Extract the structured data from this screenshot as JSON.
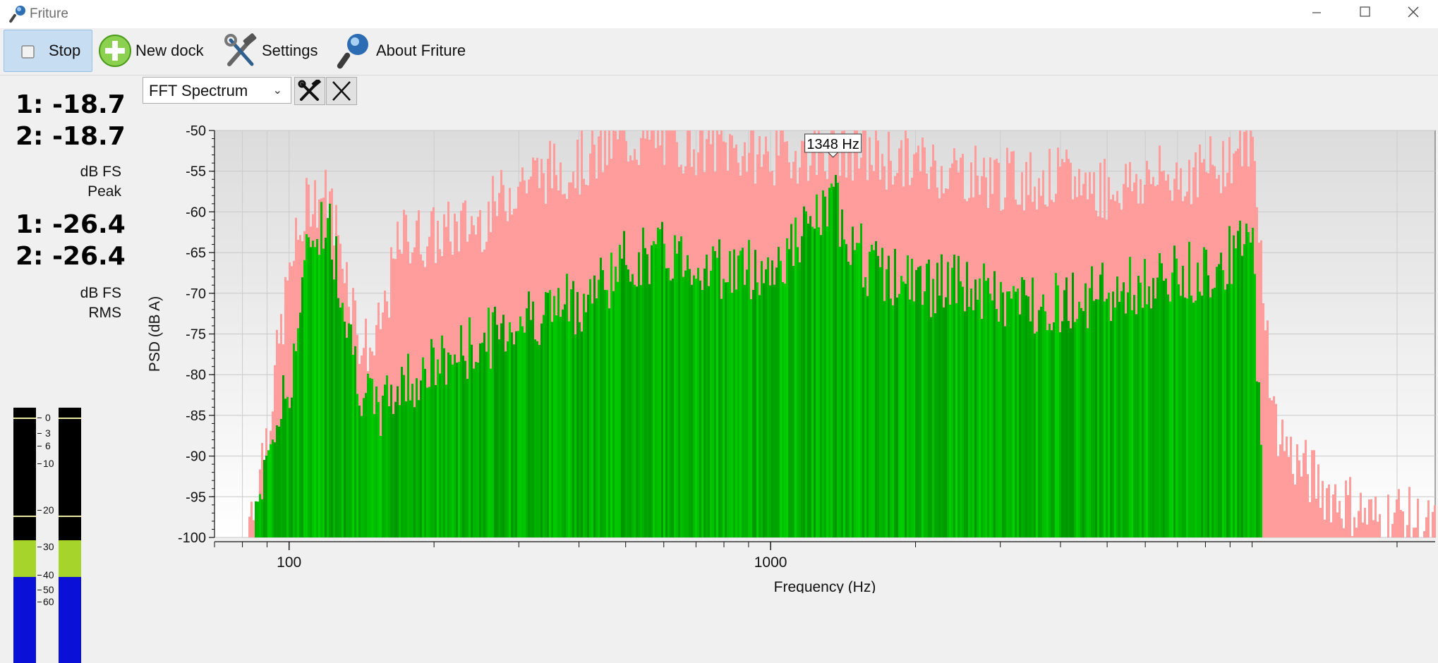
{
  "window": {
    "title": "Friture"
  },
  "toolbar": {
    "stop_label": "Stop",
    "new_dock_label": "New dock",
    "settings_label": "Settings",
    "about_label": "About Friture"
  },
  "levels": {
    "peak": {
      "ch1": "1: -18.7",
      "ch2": "2: -18.7",
      "unit": "dB FS",
      "kind": "Peak"
    },
    "rms": {
      "ch1": "1: -26.4",
      "ch2": "2: -26.4",
      "unit": "dB FS",
      "kind": "RMS"
    },
    "meter_scale": [
      "0",
      "3",
      "6",
      "10",
      "20",
      "30",
      "40",
      "50",
      "60"
    ],
    "meter_levels_db": {
      "peak": -18.7,
      "rms": -26.4
    }
  },
  "dock": {
    "widget_select": "FFT Spectrum",
    "settings_icon": "hammer-wrench-icon",
    "close_icon": "close-icon"
  },
  "chart_data": {
    "type": "bar",
    "xlabel": "Frequency (Hz)",
    "ylabel": "PSD (dB A)",
    "x_scale": "log",
    "xlim": [
      70,
      24000
    ],
    "ylim": [
      -100,
      -50
    ],
    "y_ticks": [
      -50,
      -55,
      -60,
      -65,
      -70,
      -75,
      -80,
      -85,
      -90,
      -95,
      -100
    ],
    "x_tick_labels": [
      {
        "value": 100,
        "label": "100"
      },
      {
        "value": 1000,
        "label": "1000"
      }
    ],
    "peak_annotation": "1348 Hz",
    "colors": {
      "live": "#00b400",
      "peak_hold": "#ff9c9c"
    },
    "series": [
      {
        "role": "live",
        "x": [
          80,
          90,
          100,
          110,
          120,
          130,
          140,
          150,
          170,
          200,
          250,
          300,
          400,
          500,
          600,
          800,
          1000,
          1348,
          1600,
          2000,
          2500,
          3000,
          4000,
          5000,
          6000,
          8000,
          10000,
          10500
        ],
        "values": [
          -100,
          -88,
          -80,
          -62,
          -60,
          -70,
          -80,
          -84,
          -80,
          -78,
          -75,
          -72,
          -70,
          -65,
          -64,
          -66,
          -66,
          -58,
          -66,
          -68,
          -68,
          -70,
          -70,
          -69,
          -68,
          -66,
          -63,
          -97
        ]
      },
      {
        "role": "peak_hold",
        "x": [
          80,
          90,
          100,
          110,
          120,
          130,
          140,
          150,
          170,
          200,
          250,
          300,
          400,
          500,
          600,
          800,
          1000,
          1348,
          1600,
          2000,
          2500,
          3000,
          4000,
          5000,
          6000,
          8000,
          10000,
          11000,
          12000,
          14000,
          16000,
          18000,
          20000,
          23000
        ],
        "values": [
          -100,
          -85,
          -66,
          -57,
          -57,
          -65,
          -75,
          -76,
          -62,
          -62,
          -60,
          -55,
          -53,
          -50,
          -50,
          -51,
          -52,
          -51,
          -52,
          -53,
          -54,
          -55,
          -55,
          -56,
          -55,
          -54,
          -50,
          -84,
          -89,
          -93,
          -95,
          -97,
          -96,
          -98
        ]
      }
    ]
  }
}
